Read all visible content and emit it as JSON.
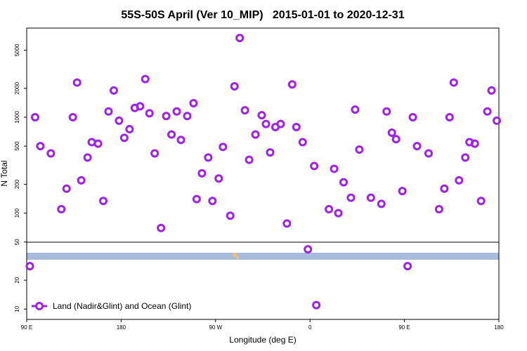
{
  "chart_data": {
    "type": "scatter",
    "title": "55S-50S April (Ver 10_MIP)   2015-01-01 to 2020-12-31",
    "x_label": "Longitude (deg E)",
    "y_label": "N Total",
    "y_scale": "log",
    "legend": "bottom-left",
    "x": [
      93,
      98,
      103,
      113,
      123,
      128,
      134,
      138,
      142,
      148,
      152,
      158,
      163,
      168,
      173,
      178,
      183,
      188,
      193,
      198,
      203,
      207,
      212,
      218,
      223,
      228,
      233,
      237,
      243,
      249,
      252,
      257,
      263,
      267,
      273,
      277,
      284,
      288,
      293,
      298,
      302,
      308,
      314,
      318,
      322,
      327,
      332,
      338,
      343,
      347,
      353,
      358,
      364,
      366,
      378,
      383,
      387,
      392,
      399,
      403,
      407,
      418,
      428,
      433,
      438,
      442,
      448,
      453,
      458,
      462,
      473,
      483,
      488,
      493,
      497,
      502,
      508,
      512,
      517,
      523,
      529,
      533,
      538
    ],
    "series": [
      {
        "name": "Land (Nadir&Glint) and Ocean (Glint)",
        "color": "#a020f0",
        "values": [
          28,
          1000,
          500,
          420,
          110,
          180,
          1000,
          2300,
          220,
          380,
          550,
          530,
          134,
          1150,
          1900,
          920,
          610,
          750,
          1250,
          1300,
          2500,
          1100,
          420,
          70,
          1030,
          660,
          1150,
          580,
          1030,
          1400,
          140,
          260,
          380,
          134,
          230,
          490,
          94,
          2100,
          6700,
          1180,
          360,
          660,
          1050,
          850,
          430,
          790,
          850,
          78,
          2200,
          790,
          550,
          42,
          310,
          11,
          110,
          290,
          100,
          210,
          145,
          1200,
          460,
          145,
          125,
          1150,
          690,
          590,
          170,
          28,
          1000,
          500,
          420,
          110,
          180,
          1000,
          2300,
          220,
          380,
          550,
          530,
          134,
          1150,
          1900,
          920
        ]
      }
    ],
    "xlim": [
      90,
      540
    ],
    "xticks": [
      {
        "value": 90,
        "label": "90 E"
      },
      180,
      {
        "value": 270,
        "label": "90 W"
      },
      {
        "value": 360,
        "label": "0"
      },
      {
        "value": 450,
        "label": "90 E"
      },
      {
        "value": 540,
        "label": "180"
      }
    ],
    "ylim": [
      7.8,
      8500
    ],
    "yticks": [
      10,
      20,
      50,
      100,
      200,
      500,
      1000,
      2000,
      5000
    ]
  }
}
